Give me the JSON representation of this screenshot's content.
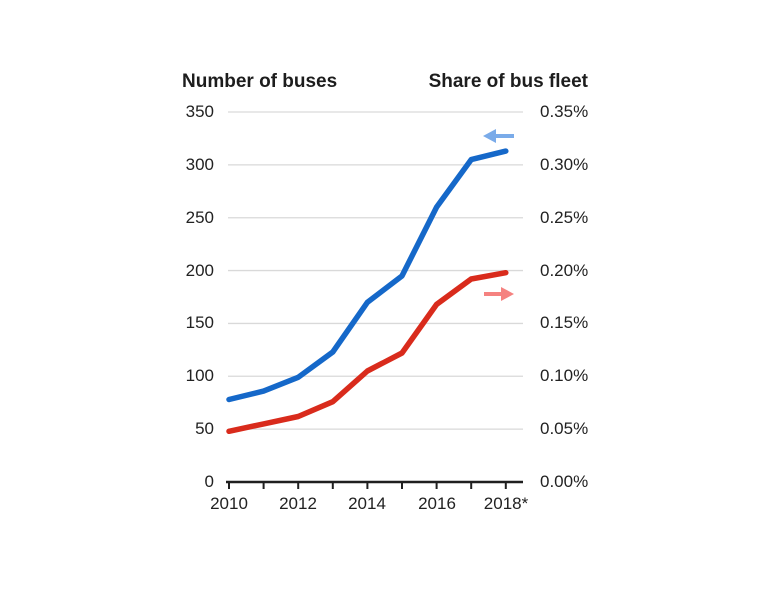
{
  "header": {
    "left_axis_title": "Number of buses",
    "right_axis_title": "Share of bus fleet"
  },
  "axes": {
    "left_tick_labels": [
      "350",
      "300",
      "250",
      "200",
      "150",
      "100",
      "50",
      "0"
    ],
    "right_tick_labels": [
      "0.35%",
      "0.30%",
      "0.25%",
      "0.20%",
      "0.15%",
      "0.10%",
      "0.05%",
      "0.00%"
    ],
    "x_tick_labels": [
      "2010",
      "2012",
      "2014",
      "2016",
      "2018*"
    ]
  },
  "chart_data": {
    "type": "line",
    "title": "",
    "x": [
      2010,
      2011,
      2012,
      2013,
      2014,
      2015,
      2016,
      2017,
      2018
    ],
    "x_tick_labels": [
      "2010",
      "2012",
      "2014",
      "2016",
      "2018*"
    ],
    "series": [
      {
        "name": "Number of buses",
        "axis": "left",
        "color": "#1568c9",
        "values": [
          78,
          86,
          99,
          123,
          170,
          195,
          260,
          305,
          313
        ]
      },
      {
        "name": "Share of bus fleet",
        "axis": "right",
        "unit": "%",
        "color": "#d92b1c",
        "values": [
          0.048,
          0.055,
          0.062,
          0.076,
          0.105,
          0.122,
          0.168,
          0.192,
          0.198
        ]
      }
    ],
    "left_axis": {
      "label": "Number of buses",
      "min": 0,
      "max": 350,
      "tick_step": 50
    },
    "right_axis": {
      "label": "Share of bus fleet",
      "min": 0,
      "max": 0.35,
      "tick_step": 0.05,
      "format": "percent"
    },
    "grid": "horizontal-only",
    "legend": "none",
    "annotations": [
      {
        "type": "arrow",
        "direction": "left",
        "color": "#7aabe9",
        "points_to": "Number of buses line / left axis"
      },
      {
        "type": "arrow",
        "direction": "right",
        "color": "#f58280",
        "points_to": "Share of bus fleet line / right axis"
      }
    ],
    "style": {
      "gridline_color": "#d9d9d9",
      "axis_line_color": "#1f1f1f",
      "text_color": "#222222",
      "background": "#ffffff",
      "line_width": 5.5
    }
  }
}
